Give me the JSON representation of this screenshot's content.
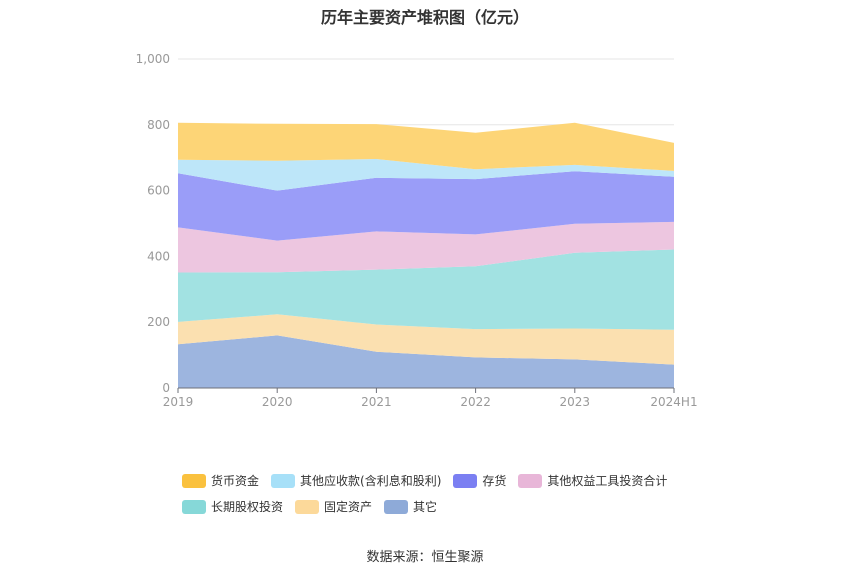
{
  "chart_data": {
    "type": "area",
    "stacked": true,
    "title": "历年主要资产堆积图（亿元）",
    "categories": [
      "2019",
      "2020",
      "2021",
      "2022",
      "2023",
      "2024H1"
    ],
    "y_ticks": [
      "0",
      "200",
      "400",
      "600",
      "800",
      "1,000"
    ],
    "ylim": [
      0,
      1000
    ],
    "grid": true,
    "legend_position": "bottom",
    "series": [
      {
        "name": "其它",
        "color": "#9db5df",
        "values": [
          133,
          160,
          110,
          93,
          87,
          71
        ]
      },
      {
        "name": "固定资产",
        "color": "#fbe0b0",
        "values": [
          68,
          64,
          83,
          86,
          94,
          106
        ]
      },
      {
        "name": "长期股权投资",
        "color": "#a2e2e2",
        "values": [
          150,
          128,
          167,
          191,
          230,
          244
        ]
      },
      {
        "name": "其他权益工具投资合计",
        "color": "#edc6e0",
        "values": [
          137,
          96,
          116,
          97,
          88,
          84
        ]
      },
      {
        "name": "存货",
        "color": "#9a9df8",
        "values": [
          165,
          152,
          163,
          168,
          160,
          137
        ]
      },
      {
        "name": "其他应收款(含利息和股利)",
        "color": "#bde6f9",
        "values": [
          41,
          91,
          57,
          30,
          19,
          18
        ]
      },
      {
        "name": "货币资金",
        "color": "#fdd577",
        "values": [
          112,
          112,
          106,
          111,
          128,
          85
        ]
      }
    ],
    "legend": [
      {
        "name": "货币资金",
        "color": "#fac13e"
      },
      {
        "name": "其他应收款(含利息和股利)",
        "color": "#a7e0f8"
      },
      {
        "name": "存货",
        "color": "#7b7ff2"
      },
      {
        "name": "其他权益工具投资合计",
        "color": "#e8b6d8"
      },
      {
        "name": "长期股权投资",
        "color": "#86d8d8"
      },
      {
        "name": "固定资产",
        "color": "#fcd99a"
      },
      {
        "name": "其它",
        "color": "#8eaad8"
      }
    ]
  },
  "source": "数据来源：恒生聚源"
}
